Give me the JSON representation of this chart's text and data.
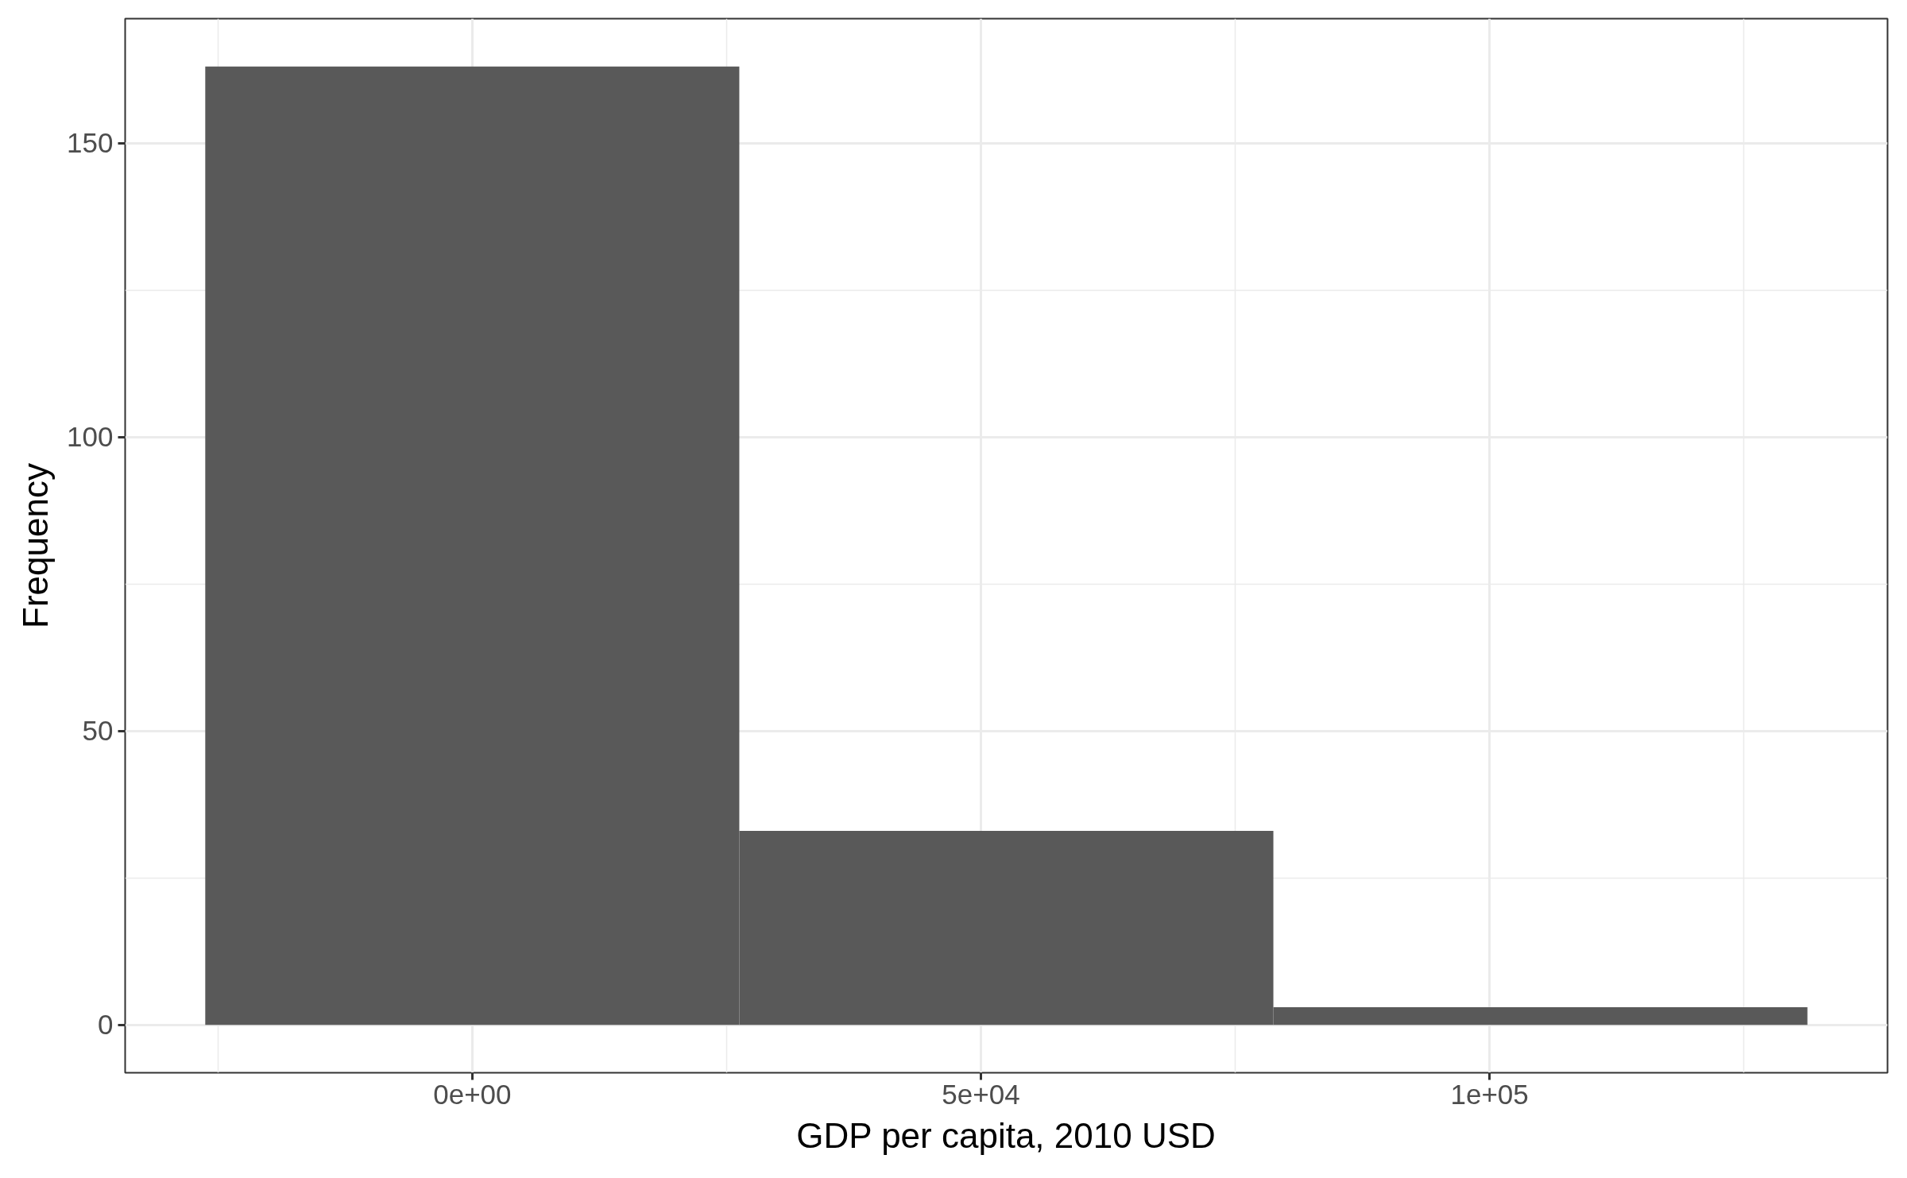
{
  "chart_data": {
    "type": "histogram",
    "xlabel": "GDP per capita, 2010 USD",
    "ylabel": "Frequency",
    "bins": [
      -26250,
      26250,
      78750,
      131250
    ],
    "values": [
      163,
      33,
      3
    ],
    "color": "#595959",
    "xlim": [
      -34125,
      139125
    ],
    "ylim": [
      -8.15,
      171.15
    ],
    "xticks": [
      {
        "value": 0,
        "label": "0e+00"
      },
      {
        "value": 50000,
        "label": "5e+04"
      },
      {
        "value": 100000,
        "label": "1e+05"
      }
    ],
    "yticks": [
      0,
      50,
      100,
      150
    ],
    "grid": true
  }
}
